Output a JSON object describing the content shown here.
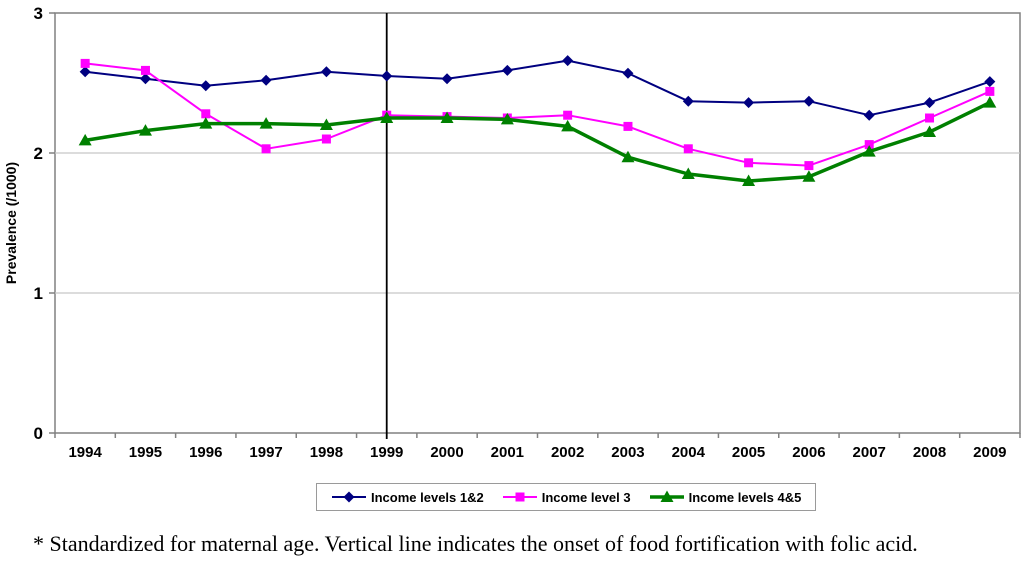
{
  "chart_data": {
    "type": "line",
    "title": "",
    "xlabel": "",
    "ylabel": "Prevalence (/1000)",
    "ylim": [
      0,
      3
    ],
    "yticks": [
      0,
      1,
      2,
      3
    ],
    "gridline_y_values": [
      1,
      2
    ],
    "legend_position": "bottom",
    "categories": [
      "1994",
      "1995",
      "1996",
      "1997",
      "1998",
      "1999",
      "2000",
      "2001",
      "2002",
      "2003",
      "2004",
      "2005",
      "2006",
      "2007",
      "2008",
      "2009"
    ],
    "series": [
      {
        "name": "Income levels 1&2",
        "color": "#000080",
        "marker": "diamond",
        "line_width": 2,
        "values": [
          2.58,
          2.53,
          2.48,
          2.52,
          2.58,
          2.55,
          2.53,
          2.59,
          2.66,
          2.57,
          2.37,
          2.36,
          2.37,
          2.27,
          2.36,
          2.51
        ]
      },
      {
        "name": "Income level 3",
        "color": "#FF00FF",
        "marker": "square",
        "line_width": 2,
        "values": [
          2.64,
          2.59,
          2.28,
          2.03,
          2.1,
          2.27,
          2.26,
          2.25,
          2.27,
          2.19,
          2.03,
          1.93,
          1.91,
          2.06,
          2.25,
          2.44
        ]
      },
      {
        "name": "Income levels 4&5",
        "color": "#008000",
        "marker": "triangle",
        "line_width": 3.5,
        "values": [
          2.09,
          2.16,
          2.21,
          2.21,
          2.2,
          2.25,
          2.25,
          2.24,
          2.19,
          1.97,
          1.85,
          1.8,
          1.83,
          2.01,
          2.15,
          2.36
        ]
      }
    ],
    "annotations": [
      {
        "type": "vline",
        "x": "1999",
        "color": "#000000"
      }
    ]
  },
  "footnote": "* Standardized for maternal age. Vertical line indicates the onset of food fortification with folic acid.",
  "colors": {
    "background": "#FFFFFF",
    "plot_border": "#808080",
    "gridline": "#C6C6C6",
    "tick": "#808080",
    "text": "#000000"
  }
}
